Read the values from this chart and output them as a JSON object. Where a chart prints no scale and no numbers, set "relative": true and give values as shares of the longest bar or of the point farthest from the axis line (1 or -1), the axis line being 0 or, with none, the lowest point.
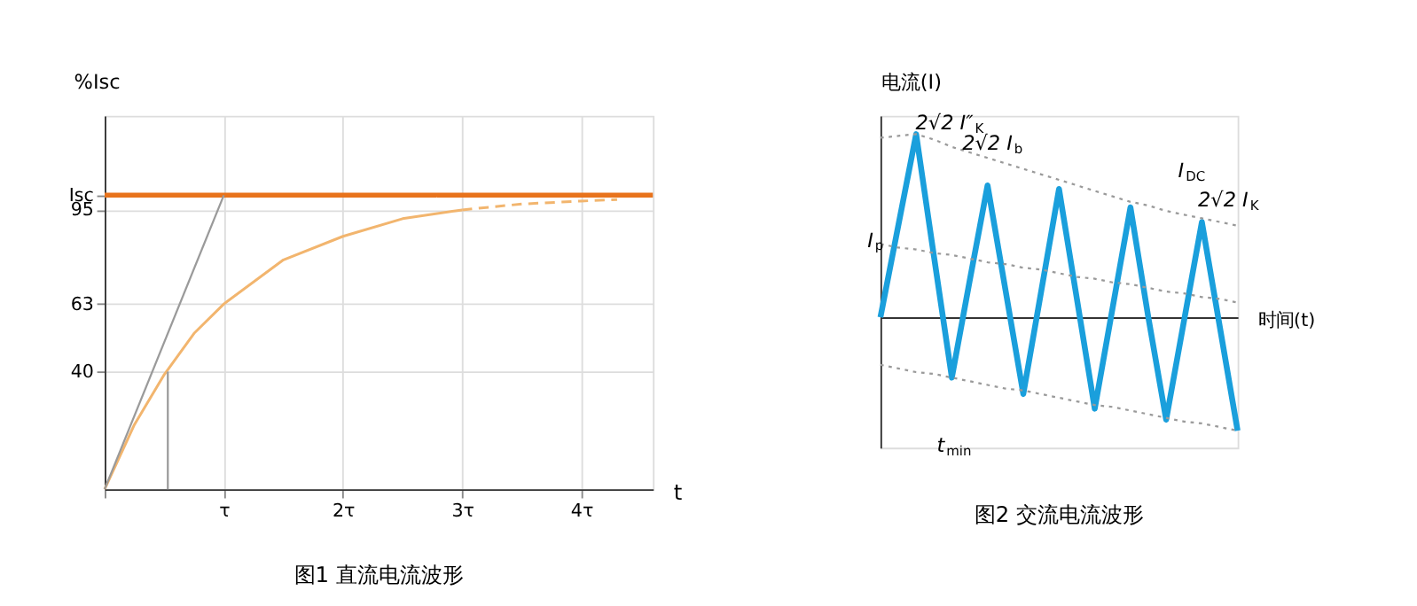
{
  "chart_data": [
    {
      "type": "line",
      "title": "图1 直流电流波形",
      "ylabel": "%Isc",
      "xlabel": "t",
      "xlim": [
        0,
        4.6
      ],
      "ylim": [
        0,
        127
      ],
      "xticks": [
        {
          "value": 0,
          "label": null
        },
        {
          "value": 1,
          "label": "τ"
        },
        {
          "value": 2,
          "label": "2τ"
        },
        {
          "value": 3,
          "label": "3τ"
        },
        {
          "value": 4,
          "label": "4τ"
        }
      ],
      "yticks": [
        40,
        63,
        95,
        {
          "value": 100,
          "label": "Isc"
        }
      ],
      "grid": true,
      "legend": false,
      "ref_lines": [
        {
          "axis": "y",
          "value": 100,
          "color": "#e8731c"
        }
      ],
      "series": [
        {
          "color": "#f2b56e",
          "line_style": "solid",
          "x": [
            0,
            0.25,
            0.5,
            0.75,
            1,
            1.5,
            2,
            2.5,
            3
          ],
          "values": [
            0,
            22,
            39,
            53,
            63,
            78,
            86,
            92,
            95
          ]
        },
        {
          "color": "#f2b56e",
          "line_style": "dashed",
          "x": [
            3,
            3.5,
            4,
            4.3
          ],
          "values": [
            95,
            97,
            98,
            98.5
          ]
        },
        {
          "color": "#9a9a9a",
          "line_style": "solid",
          "x": [
            0,
            1
          ],
          "values": [
            0,
            100
          ]
        },
        {
          "color": "#9a9a9a",
          "line_style": "solid",
          "x": [
            0.53,
            0.53
          ],
          "values": [
            0,
            40
          ]
        }
      ]
    },
    {
      "type": "line",
      "title": "图2 交流电流波形",
      "ylabel": "电流(I)",
      "xlabel": "时间(t)",
      "relative": true,
      "legend": false,
      "categories": [
        null,
        null,
        null,
        null,
        null,
        null,
        null,
        null,
        null,
        null,
        null,
        null,
        null,
        null,
        null,
        null,
        null,
        null,
        null,
        null,
        null
      ],
      "annotations": [
        "2√2 I″$_{K}$",
        "2√2 I$_{b}$",
        "I$_{DC}$",
        "2√2 I$_{K}$",
        "I$_{p}$",
        "t$_{min}$"
      ],
      "series": [
        {
          "color": "#1a9fdc",
          "line_style": "solid",
          "values": [
            0,
            0.5,
            1.0,
            0.33,
            -0.33,
            0.2,
            0.72,
            0.15,
            -0.42,
            0.14,
            0.7,
            0.1,
            -0.5,
            0.05,
            0.6,
            0.0,
            -0.56,
            -0.02,
            0.52,
            -0.05,
            -0.62
          ]
        },
        {
          "color": "#9a9a9a",
          "line_style": "dotted",
          "values": [
            0.98,
            0.99,
            1.0,
            0.97,
            0.93,
            0.9,
            0.87,
            0.84,
            0.81,
            0.78,
            0.75,
            0.72,
            0.69,
            0.66,
            0.63,
            0.61,
            0.58,
            0.56,
            0.54,
            0.52,
            0.5
          ]
        },
        {
          "color": "#9a9a9a",
          "line_style": "dotted",
          "values": [
            0.4,
            0.38,
            0.37,
            0.35,
            0.34,
            0.32,
            0.3,
            0.29,
            0.27,
            0.26,
            0.24,
            0.22,
            0.21,
            0.19,
            0.18,
            0.16,
            0.14,
            0.13,
            0.11,
            0.1,
            0.08
          ]
        },
        {
          "color": "#9a9a9a",
          "line_style": "dotted",
          "values": [
            -0.26,
            -0.28,
            -0.3,
            -0.31,
            -0.33,
            -0.35,
            -0.37,
            -0.39,
            -0.4,
            -0.42,
            -0.44,
            -0.46,
            -0.48,
            -0.49,
            -0.51,
            -0.53,
            -0.55,
            -0.57,
            -0.58,
            -0.6,
            -0.62
          ]
        }
      ]
    }
  ]
}
